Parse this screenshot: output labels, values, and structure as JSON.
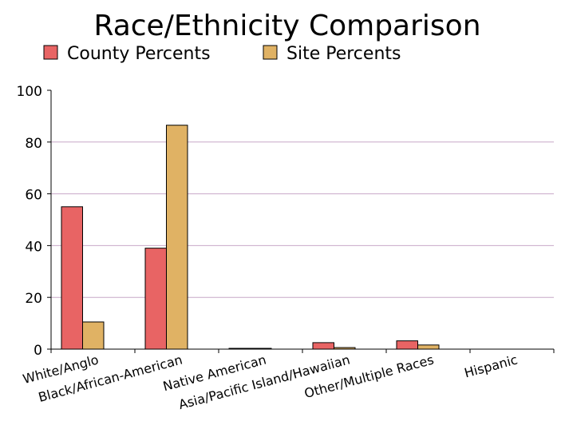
{
  "chart_data": {
    "type": "bar",
    "title": "Race/Ethnicity Comparison",
    "categories": [
      "White/Anglo",
      "Black/African-American",
      "Native American",
      "Asia/Pacific Island/Hawaiian",
      "Other/Multiple Races",
      "Hispanic"
    ],
    "series": [
      {
        "name": "County Percents",
        "color": "#e86464",
        "values": [
          55,
          39,
          0.3,
          2.5,
          3.2,
          0
        ]
      },
      {
        "name": "Site Percents",
        "color": "#e0b264",
        "values": [
          10.5,
          86.5,
          0.2,
          0.6,
          1.6,
          0
        ]
      }
    ],
    "ylim": [
      0,
      100
    ],
    "yticks": [
      0,
      20,
      40,
      60,
      80,
      100
    ],
    "grid": true,
    "gridline_color": "#c8a8c8",
    "legend_position": "top"
  }
}
